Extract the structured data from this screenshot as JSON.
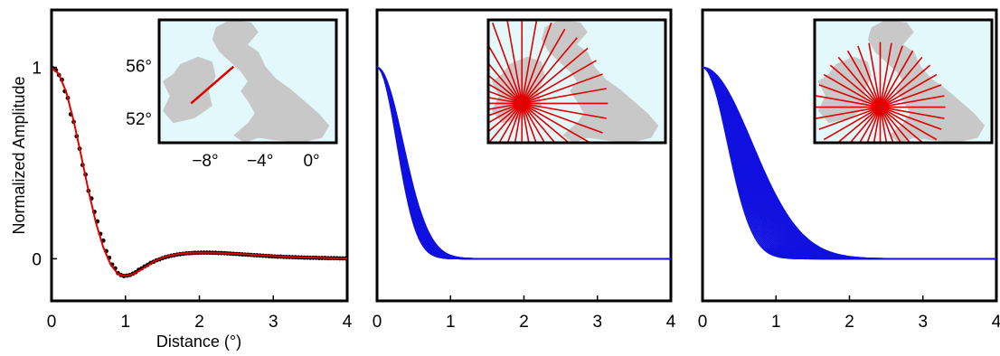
{
  "chart_data": [
    {
      "type": "line",
      "panel": "left",
      "xlabel": "Distance (°)",
      "ylabel": "Normalized Amplitude",
      "xlim": [
        0,
        4
      ],
      "ylim": [
        -0.22,
        1.3
      ],
      "xticks": [
        "0",
        "1",
        "2",
        "3",
        "4"
      ],
      "yticks": [
        "0",
        "1"
      ],
      "series": [
        {
          "style": "black-points",
          "color": "#000000",
          "x": [
            0.02,
            0.06,
            0.1,
            0.14,
            0.18,
            0.22,
            0.26,
            0.3,
            0.34,
            0.38,
            0.42,
            0.46,
            0.5,
            0.54,
            0.58,
            0.62,
            0.66,
            0.7,
            0.74,
            0.78,
            0.82,
            0.86,
            0.9,
            0.94,
            0.98,
            1.02,
            1.06,
            1.1,
            1.14,
            1.18,
            1.22,
            1.26,
            1.3,
            1.34,
            1.38,
            1.42,
            1.46,
            1.5,
            1.54,
            1.58,
            1.62,
            1.66,
            1.7,
            1.74,
            1.78,
            1.82,
            1.86,
            1.9,
            1.94,
            1.98,
            2.02,
            2.06,
            2.1,
            2.14,
            2.18,
            2.22,
            2.26,
            2.3,
            2.34,
            2.38,
            2.42,
            2.46,
            2.5,
            2.54,
            2.58,
            2.62,
            2.66,
            2.7,
            2.74,
            2.78,
            2.82,
            2.86,
            2.9,
            2.94,
            2.98,
            3.02,
            3.06,
            3.1,
            3.14,
            3.18,
            3.22,
            3.26,
            3.3,
            3.34,
            3.38,
            3.42,
            3.46,
            3.5,
            3.54,
            3.58,
            3.62,
            3.66,
            3.7,
            3.74,
            3.78,
            3.82,
            3.86,
            3.9,
            3.94,
            3.98
          ],
          "y": [
            0.995,
            0.985,
            0.96,
            0.935,
            0.875,
            0.84,
            0.755,
            0.715,
            0.64,
            0.575,
            0.49,
            0.44,
            0.355,
            0.315,
            0.245,
            0.195,
            0.13,
            0.095,
            0.04,
            0.005,
            -0.03,
            -0.05,
            -0.075,
            -0.085,
            -0.09,
            -0.088,
            -0.085,
            -0.078,
            -0.07,
            -0.058,
            -0.05,
            -0.04,
            -0.032,
            -0.022,
            -0.016,
            -0.008,
            -0.003,
            0.003,
            0.008,
            0.012,
            0.016,
            0.019,
            0.022,
            0.024,
            0.026,
            0.028,
            0.029,
            0.03,
            0.031,
            0.031,
            0.032,
            0.032,
            0.032,
            0.032,
            0.031,
            0.031,
            0.03,
            0.03,
            0.029,
            0.028,
            0.027,
            0.026,
            0.025,
            0.024,
            0.023,
            0.022,
            0.021,
            0.02,
            0.019,
            0.018,
            0.017,
            0.016,
            0.015,
            0.014,
            0.013,
            0.012,
            0.011,
            0.011,
            0.01,
            0.009,
            0.009,
            0.008,
            0.008,
            0.007,
            0.007,
            0.006,
            0.006,
            0.005,
            0.005,
            0.005,
            0.004,
            0.004,
            0.004,
            0.003,
            0.003,
            0.003,
            0.003,
            0.002,
            0.002,
            0.002
          ]
        },
        {
          "style": "red-fit",
          "color": "#e00000",
          "x": [
            0,
            0.1,
            0.2,
            0.3,
            0.4,
            0.5,
            0.6,
            0.7,
            0.8,
            0.9,
            1.0,
            1.1,
            1.2,
            1.3,
            1.4,
            1.5,
            1.6,
            1.7,
            1.8,
            1.9,
            2.0,
            2.2,
            2.4,
            2.6,
            2.8,
            3.0,
            3.2,
            3.4,
            3.6,
            3.8,
            4.0
          ],
          "y": [
            1.0,
            0.965,
            0.87,
            0.72,
            0.54,
            0.355,
            0.19,
            0.06,
            -0.03,
            -0.08,
            -0.09,
            -0.08,
            -0.06,
            -0.035,
            -0.012,
            0.005,
            0.016,
            0.024,
            0.029,
            0.031,
            0.032,
            0.031,
            0.028,
            0.024,
            0.019,
            0.014,
            0.01,
            0.007,
            0.005,
            0.003,
            0.002
          ]
        }
      ],
      "inset": {
        "map_region": "Britain and Ireland",
        "yticks": [
          "56°",
          "52°"
        ],
        "xticks": [
          "−8°",
          "−4°",
          "0°"
        ],
        "profile_color": "#e00000",
        "sea_color": "#e2f8fa",
        "land_color": "#c8c8c8"
      }
    },
    {
      "type": "line",
      "panel": "middle",
      "xlim": [
        0,
        4
      ],
      "ylim": [
        -0.22,
        1.3
      ],
      "xticks": [
        "0",
        "1",
        "2",
        "3",
        "4"
      ],
      "color": "#1010e0",
      "curve_count": 36,
      "decay_widths": [
        0.38,
        0.5
      ],
      "inset": {
        "map_region": "Britain and Ireland",
        "profile_color": "#e00000",
        "center": "Irish Sea",
        "spokes": 36
      }
    },
    {
      "type": "line",
      "panel": "right",
      "xlim": [
        0,
        4
      ],
      "ylim": [
        -0.22,
        1.3
      ],
      "xticks": [
        "0",
        "1",
        "2",
        "3",
        "4"
      ],
      "color": "#1010e0",
      "curve_count": 36,
      "decay_widths": [
        0.48,
        0.95
      ],
      "inset": {
        "map_region": "Britain and Ireland",
        "profile_color": "#e00000",
        "center": "Central England",
        "spokes": 36
      }
    }
  ]
}
